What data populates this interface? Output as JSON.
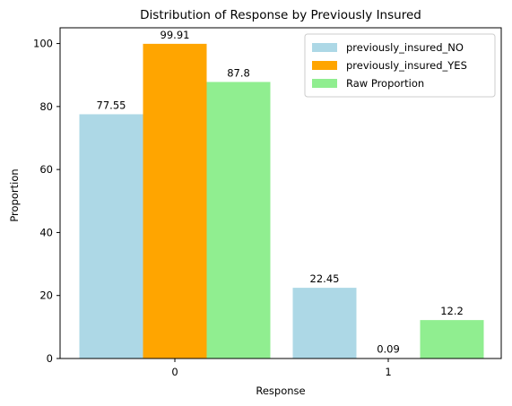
{
  "chart_data": {
    "type": "bar",
    "title": "Distribution of Response by Previously Insured",
    "xlabel": "Response",
    "ylabel": "Proportion",
    "categories": [
      "0",
      "1"
    ],
    "ylim": [
      0,
      105
    ],
    "yticks": [
      0,
      20,
      40,
      60,
      80,
      100
    ],
    "grid": false,
    "legend_position": "top-right",
    "series": [
      {
        "name": "previously_insured_NO",
        "color": "#add8e6",
        "values": [
          77.55,
          22.45
        ],
        "labels": [
          "77.55",
          "22.45"
        ]
      },
      {
        "name": "previously_insured_YES",
        "color": "#ffa500",
        "values": [
          99.91,
          0.09
        ],
        "labels": [
          "99.91",
          "0.09"
        ]
      },
      {
        "name": "Raw Proportion",
        "color": "#90ee90",
        "values": [
          87.8,
          12.2
        ],
        "labels": [
          "87.8",
          "12.2"
        ]
      }
    ]
  }
}
